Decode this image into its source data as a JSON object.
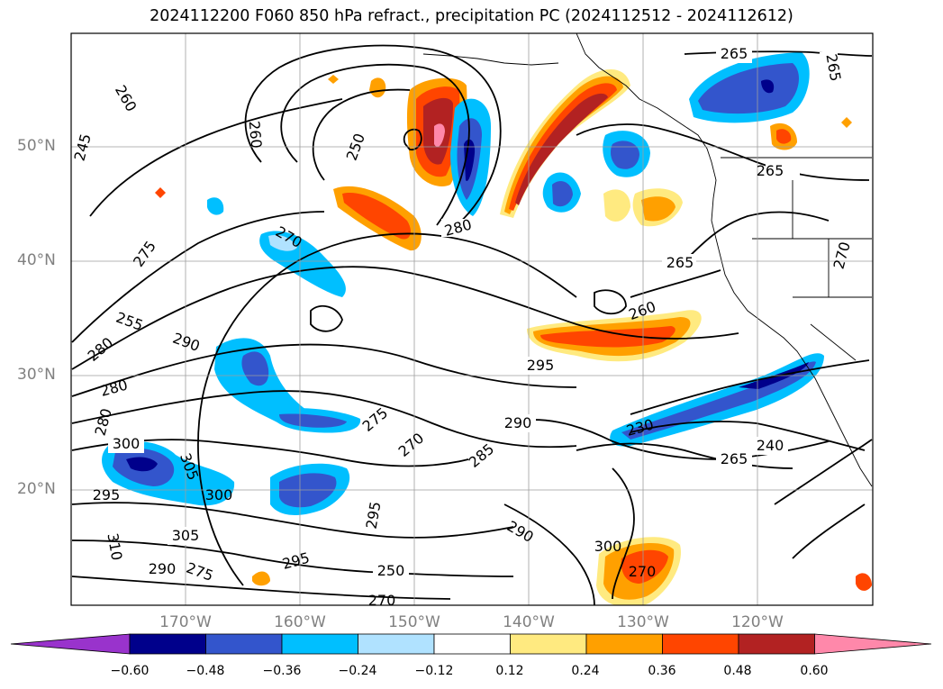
{
  "title": "2024112200 F060 850 hPa refract., precipitation PC (2024112512 - 2024112612)",
  "lat_labels": [
    "50°N",
    "40°N",
    "30°N",
    "20°N"
  ],
  "lon_labels": [
    "170°W",
    "160°W",
    "150°W",
    "140°W",
    "130°W",
    "120°W"
  ],
  "contour_labels": [
    "265",
    "265",
    "260",
    "260",
    "245",
    "250",
    "280",
    "275",
    "270",
    "265",
    "265",
    "260",
    "270",
    "255",
    "280",
    "290",
    "295",
    "280",
    "290",
    "275",
    "270",
    "230",
    "240",
    "265",
    "285",
    "280",
    "300",
    "305",
    "300",
    "295",
    "295",
    "305",
    "310",
    "290",
    "275",
    "295",
    "250",
    "270",
    "290",
    "300",
    "270"
  ],
  "colorbar": {
    "tick_labels": [
      "−0.60",
      "−0.48",
      "−0.36",
      "−0.24",
      "−0.12",
      "0.12",
      "0.24",
      "0.36",
      "0.48",
      "0.60"
    ],
    "colors": [
      "#9933cc",
      "#00008b",
      "#3355cc",
      "#00bfff",
      "#b0e2ff",
      "#ffffff",
      "#ffea80",
      "#ffa000",
      "#ff4500",
      "#b22222",
      "#ff88aa"
    ]
  }
}
